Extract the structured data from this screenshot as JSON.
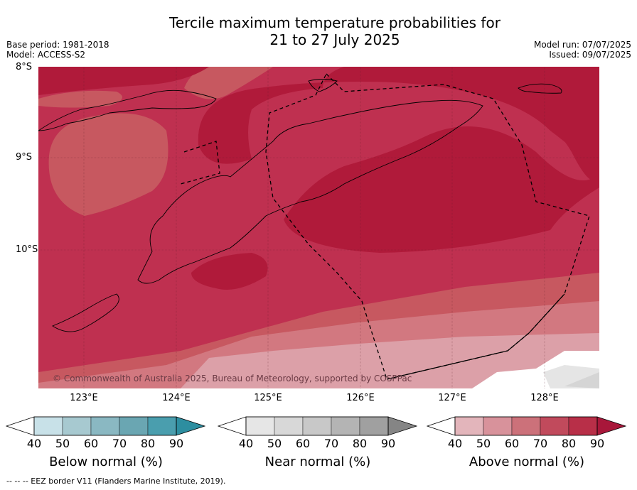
{
  "title": {
    "line1": "Tercile maximum temperature probabilities for",
    "line2": "21 to 27 July 2025"
  },
  "meta_left": {
    "base_period": "Base period: 1981-2018",
    "model": "Model: ACCESS-S2"
  },
  "meta_right": {
    "model_run": "Model run: 07/07/2025",
    "issued": "Issued: 09/07/2025"
  },
  "map": {
    "lat_labels": [
      "8°S",
      "9°S",
      "10°S"
    ],
    "lon_labels": [
      "123°E",
      "124°E",
      "125°E",
      "126°E",
      "127°E",
      "128°E"
    ],
    "copyright": "© Commonwealth of Australia 2025, Bureau of Meteorology, supported by COSPPac",
    "category_shown": "Above normal",
    "colors": {
      "above_90": "#b01a3a",
      "above_80": "#bf3050",
      "above_70": "#c75860",
      "above_60": "#d27880",
      "above_50": "#dca0a8",
      "near_60": "#d5d5d5",
      "near_50": "#e5e5e5"
    }
  },
  "colorbars": [
    {
      "name": "below",
      "title": "Below normal (%)",
      "ticks": [
        "40",
        "50",
        "60",
        "70",
        "80",
        "90"
      ],
      "colors": [
        "#ffffff",
        "#c8e1e8",
        "#a7c9d0",
        "#8ab8c2",
        "#6aa6b2",
        "#4a9eae",
        "#2d8ea0"
      ]
    },
    {
      "name": "near",
      "title": "Near normal (%)",
      "ticks": [
        "40",
        "50",
        "60",
        "70",
        "80",
        "90"
      ],
      "colors": [
        "#ffffff",
        "#e6e6e6",
        "#d8d8d8",
        "#c8c8c8",
        "#b4b4b4",
        "#a0a0a0",
        "#858585"
      ]
    },
    {
      "name": "above",
      "title": "Above normal (%)",
      "ticks": [
        "40",
        "50",
        "60",
        "70",
        "80",
        "90"
      ],
      "colors": [
        "#ffffff",
        "#e3b5bb",
        "#d8929b",
        "#cc717a",
        "#c14a5c",
        "#b82f48",
        "#a8173a"
      ]
    }
  ],
  "footer": "--  --  -- EEZ border V11 (Flanders Marine Institute, 2019)."
}
